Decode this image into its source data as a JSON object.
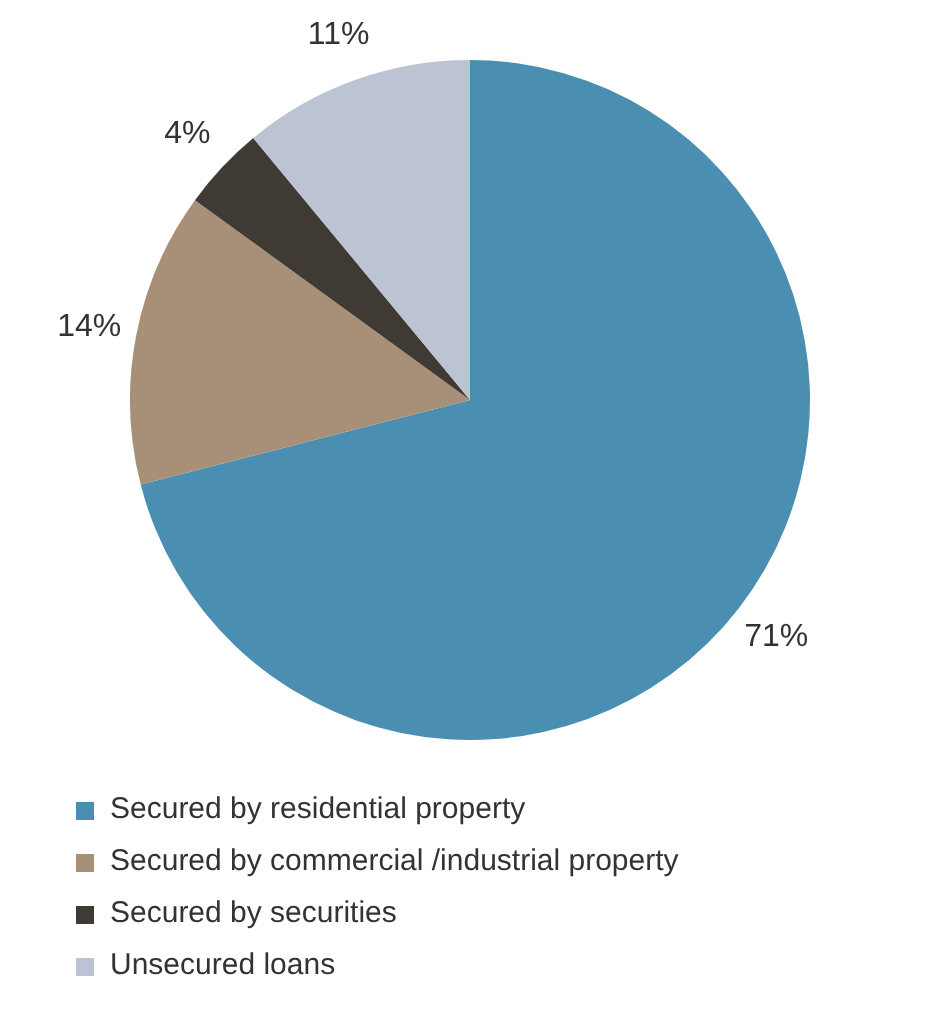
{
  "chart_data": {
    "type": "pie",
    "categories": [
      "Secured by residential property",
      "Secured by commercial /industrial property",
      "Secured by securities",
      "Unsecured loans"
    ],
    "values": [
      71,
      14,
      4,
      11
    ],
    "colors": [
      "#4a8fb1",
      "#a88f78",
      "#3f3b34",
      "#bcc3d3"
    ],
    "value_labels": [
      "71%",
      "14%",
      "4%",
      "11%"
    ],
    "legend": "bottom"
  }
}
